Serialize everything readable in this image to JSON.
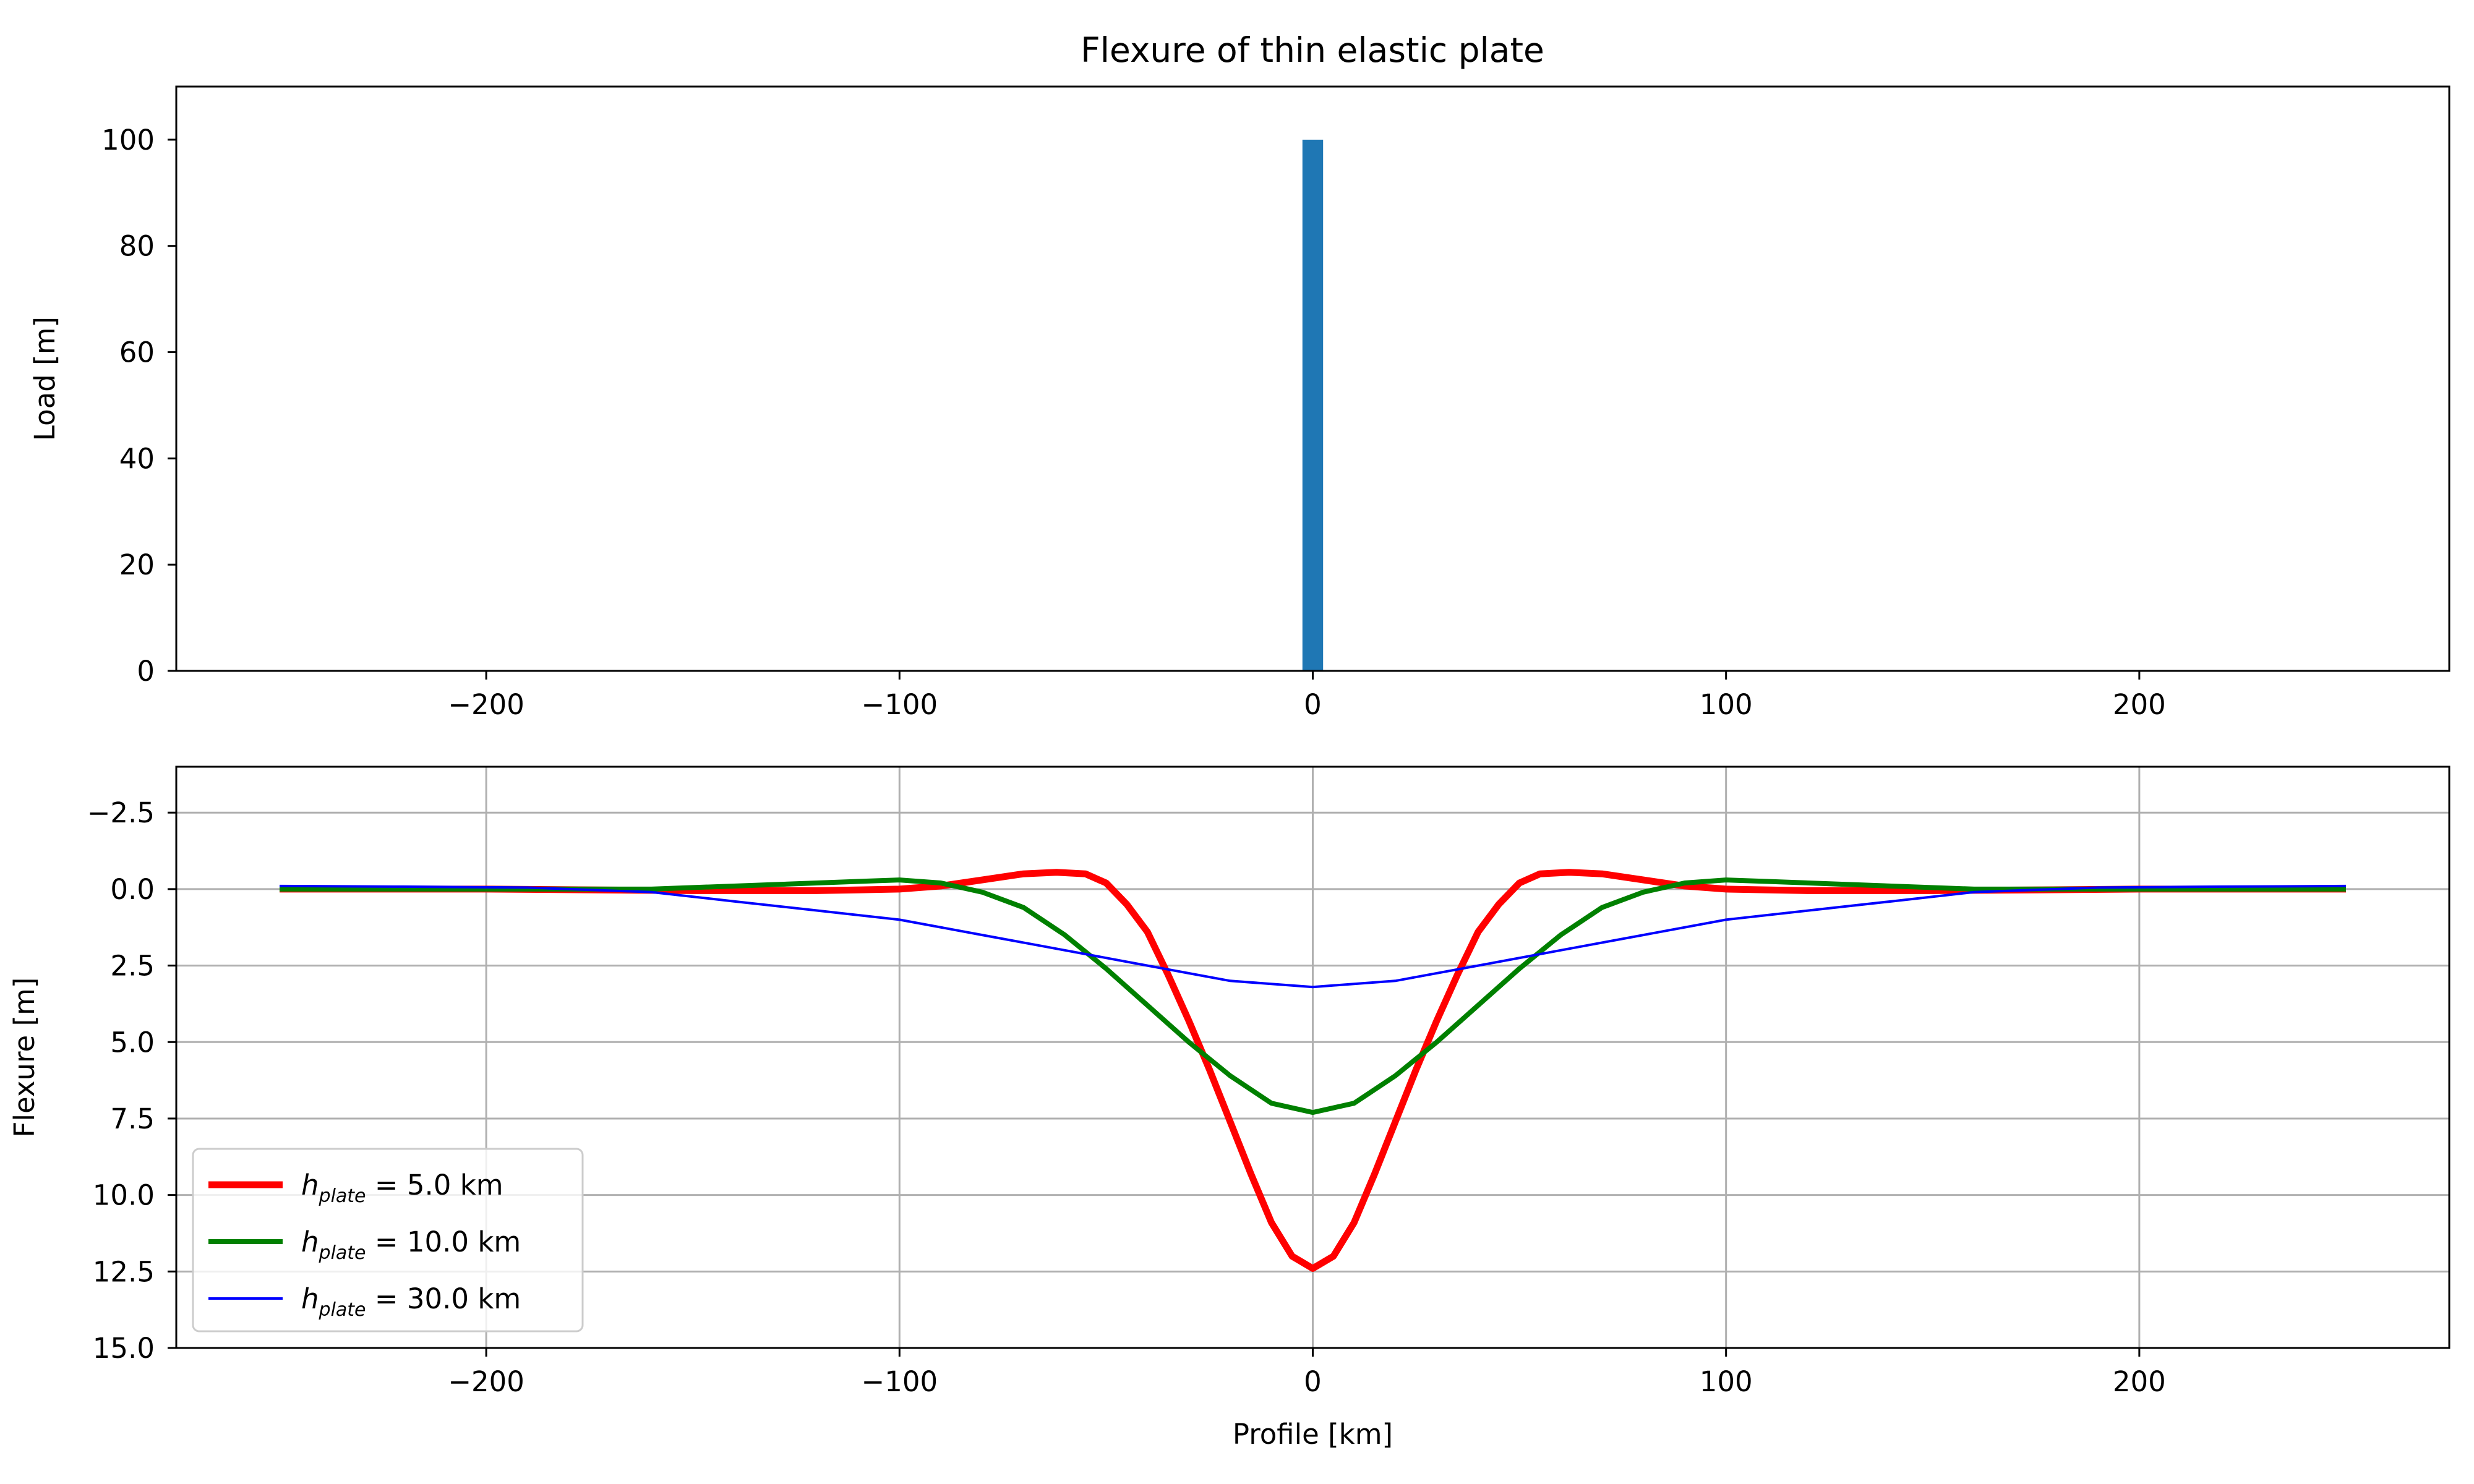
{
  "chart_data": [
    {
      "type": "bar",
      "title": "Flexure of thin elastic plate",
      "xlabel": "",
      "ylabel": "Load [m]",
      "xlim": [
        -275,
        275
      ],
      "ylim": [
        0,
        110
      ],
      "xticks": [
        -200,
        -100,
        0,
        100,
        200
      ],
      "xtick_labels": [
        "−200",
        "−100",
        "0",
        "100",
        "200"
      ],
      "yticks": [
        0,
        20,
        40,
        60,
        80,
        100
      ],
      "ytick_labels": [
        "0",
        "20",
        "40",
        "60",
        "80",
        "100"
      ],
      "grid": false,
      "bars": [
        {
          "x0": -2.5,
          "x1": 2.5,
          "value": 100
        }
      ],
      "bar_color": "#1f77b4"
    },
    {
      "type": "line",
      "xlabel": "Profile [km]",
      "ylabel": "Flexure [m]",
      "xlim": [
        -275,
        275
      ],
      "ylim": [
        15,
        -4
      ],
      "y_inverted": true,
      "xticks": [
        -200,
        -100,
        0,
        100,
        200
      ],
      "xtick_labels": [
        "−200",
        "−100",
        "0",
        "100",
        "200"
      ],
      "yticks": [
        -2.5,
        0,
        2.5,
        5,
        7.5,
        10,
        12.5,
        15
      ],
      "ytick_labels": [
        "−2.5",
        "0.0",
        "2.5",
        "5.0",
        "7.5",
        "10.0",
        "12.5",
        "15.0"
      ],
      "grid": true,
      "legend_position": "lower-left",
      "series": [
        {
          "name": "h_plate = 5.0 km",
          "legend_sub": "plate",
          "legend_rest": " = 5.0 km",
          "color": "#ff0000",
          "line_width": 11,
          "x": [
            -250,
            -200,
            -150,
            -120,
            -100,
            -90,
            -80,
            -70,
            -62,
            -55,
            -50,
            -45,
            -40,
            -35,
            -30,
            -25,
            -20,
            -15,
            -10,
            -5,
            0,
            5,
            10,
            15,
            20,
            25,
            30,
            35,
            40,
            45,
            50,
            55,
            62,
            70,
            80,
            90,
            100,
            120,
            150,
            200,
            250
          ],
          "y": [
            0,
            0,
            0.05,
            0.05,
            0,
            -0.1,
            -0.3,
            -0.5,
            -0.55,
            -0.5,
            -0.2,
            0.5,
            1.4,
            2.8,
            4.3,
            5.9,
            7.6,
            9.3,
            10.9,
            12.0,
            12.4,
            12.0,
            10.9,
            9.3,
            7.6,
            5.9,
            4.3,
            2.8,
            1.4,
            0.5,
            -0.2,
            -0.5,
            -0.55,
            -0.5,
            -0.3,
            -0.1,
            0,
            0.05,
            0.05,
            0,
            0
          ]
        },
        {
          "name": "h_plate = 10.0 km",
          "legend_sub": "plate",
          "legend_rest": " = 10.0 km",
          "color": "#008000",
          "line_width": 8,
          "x": [
            -250,
            -200,
            -160,
            -130,
            -110,
            -100,
            -90,
            -80,
            -70,
            -60,
            -50,
            -40,
            -30,
            -20,
            -10,
            0,
            10,
            20,
            30,
            40,
            50,
            60,
            70,
            80,
            90,
            100,
            110,
            130,
            160,
            200,
            250
          ],
          "y": [
            0,
            0,
            0,
            -0.15,
            -0.25,
            -0.3,
            -0.2,
            0.1,
            0.6,
            1.5,
            2.6,
            3.8,
            5.0,
            6.1,
            7.0,
            7.3,
            7.0,
            6.1,
            5.0,
            3.8,
            2.6,
            1.5,
            0.6,
            0.1,
            -0.2,
            -0.3,
            -0.25,
            -0.15,
            0,
            0,
            0
          ]
        },
        {
          "name": "h_plate = 30.0 km",
          "legend_sub": "plate",
          "legend_rest": " = 30.0 km",
          "color": "#0000ff",
          "line_width": 4,
          "x": [
            -250,
            -220,
            -190,
            -160,
            -140,
            -120,
            -100,
            -80,
            -60,
            -40,
            -20,
            0,
            20,
            40,
            60,
            80,
            100,
            120,
            140,
            160,
            190,
            220,
            250
          ],
          "y": [
            -0.1,
            -0.08,
            -0.05,
            0.1,
            0.4,
            0.7,
            1.0,
            1.5,
            2.0,
            2.5,
            3.0,
            3.2,
            3.0,
            2.5,
            2.0,
            1.5,
            1.0,
            0.7,
            0.4,
            0.1,
            -0.05,
            -0.08,
            -0.1
          ]
        }
      ]
    }
  ]
}
